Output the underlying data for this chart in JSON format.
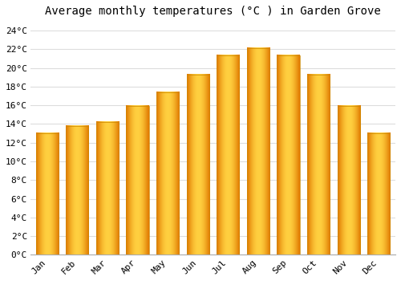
{
  "months": [
    "Jan",
    "Feb",
    "Mar",
    "Apr",
    "May",
    "Jun",
    "Jul",
    "Aug",
    "Sep",
    "Oct",
    "Nov",
    "Dec"
  ],
  "temperatures": [
    13.0,
    13.8,
    14.2,
    15.9,
    17.4,
    19.3,
    21.3,
    22.1,
    21.3,
    19.3,
    15.9,
    13.0
  ],
  "title": "Average monthly temperatures (°C ) in Garden Grove",
  "ylim": [
    0,
    25
  ],
  "yticks": [
    0,
    2,
    4,
    6,
    8,
    10,
    12,
    14,
    16,
    18,
    20,
    22,
    24
  ],
  "ytick_labels": [
    "0°C",
    "2°C",
    "4°C",
    "6°C",
    "8°C",
    "10°C",
    "12°C",
    "14°C",
    "16°C",
    "18°C",
    "20°C",
    "22°C",
    "24°C"
  ],
  "background_color": "#FFFFFF",
  "grid_color": "#DDDDDD",
  "bar_edge_color": "#E07800",
  "bar_center_color": "#FFD040",
  "bar_mid_color": "#FFB020",
  "title_fontsize": 10,
  "tick_fontsize": 8,
  "bar_width": 0.75
}
